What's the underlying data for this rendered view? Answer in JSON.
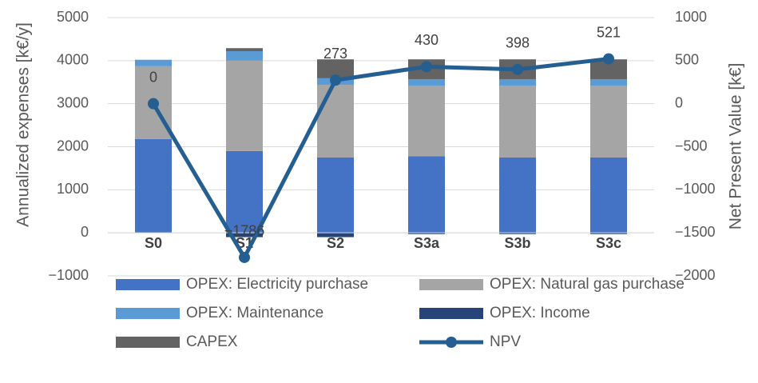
{
  "chart_data": {
    "type": "bar",
    "categories": [
      "S0",
      "S1",
      "S2",
      "S3a",
      "S3b",
      "S3c"
    ],
    "series": [
      {
        "name": "OPEX: Electricity purchase",
        "color": "#4472c4",
        "values": [
          2180,
          1900,
          1750,
          1780,
          1750,
          1750
        ]
      },
      {
        "name": "OPEX: Natural gas purchase",
        "color": "#a5a5a5",
        "values": [
          1690,
          2100,
          1690,
          1640,
          1670,
          1670
        ]
      },
      {
        "name": "OPEX: Maintenance",
        "color": "#5b9bd5",
        "values": [
          150,
          220,
          150,
          150,
          150,
          150
        ]
      },
      {
        "name": "OPEX: Income",
        "color": "#264478",
        "values": [
          0,
          -100,
          -100,
          -30,
          -30,
          -30
        ]
      },
      {
        "name": "CAPEX",
        "color": "#636363",
        "values": [
          0,
          70,
          440,
          460,
          460,
          460
        ]
      },
      {
        "name": "NPV",
        "type": "line",
        "axis": "y2",
        "color": "#255e91",
        "values": [
          0,
          -1786,
          273,
          430,
          398,
          521
        ],
        "value_labels": [
          "0",
          "−1786",
          "273",
          "430",
          "398",
          "521"
        ]
      }
    ],
    "ylabel": "Annualized expenses [k€/y]",
    "y2label": "Net Present Value [k€]",
    "ylim": [
      -1000,
      5000
    ],
    "yticks": [
      {
        "value": -1000,
        "label": "−1000"
      },
      0,
      1000,
      2000,
      3000,
      4000,
      5000
    ],
    "y2lim": [
      -2000,
      1000
    ],
    "y2ticks": [
      {
        "value": -2000,
        "label": "−2000"
      },
      {
        "value": -1500,
        "label": "−1500"
      },
      {
        "value": -1000,
        "label": "−1000"
      },
      {
        "value": -500,
        "label": "−500"
      },
      0,
      500,
      1000
    ],
    "grid": true,
    "legend": "bottom"
  }
}
